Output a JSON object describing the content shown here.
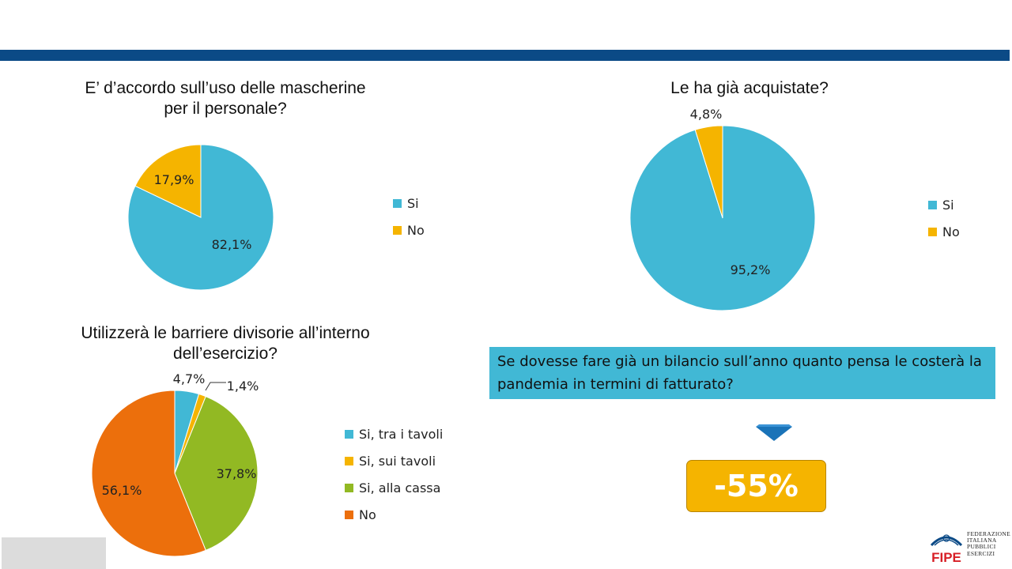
{
  "chart_data": [
    {
      "type": "pie",
      "title": "E’ d’accordo sull’uso delle mascherine per il personale?",
      "title_lines": [
        "E’ d’accordo sull’uso delle mascherine",
        "per il personale?"
      ],
      "categories": [
        "Si",
        "No"
      ],
      "values": [
        82.1,
        17.9
      ],
      "labels": [
        "82,1%",
        "17,9%"
      ],
      "colors": [
        "#41b8d5",
        "#f5b400"
      ],
      "legend": "right"
    },
    {
      "type": "pie",
      "title": "Le ha già acquistate?",
      "title_lines": [
        "Le ha già acquistate?"
      ],
      "categories": [
        "Si",
        "No"
      ],
      "values": [
        95.2,
        4.8
      ],
      "labels": [
        "95,2%",
        "4,8%"
      ],
      "colors": [
        "#41b8d5",
        "#f5b400"
      ],
      "legend": "right"
    },
    {
      "type": "pie",
      "title": "Utilizzerà le barriere divisorie all’interno dell’esercizio?",
      "title_lines": [
        "Utilizzerà le barriere divisorie all’interno",
        "dell’esercizio?"
      ],
      "categories": [
        "Si, tra i tavoli",
        "Si, sui tavoli",
        "Si, alla cassa",
        "No"
      ],
      "values": [
        4.7,
        1.4,
        37.8,
        56.1
      ],
      "labels": [
        "4,7%",
        "1,4%",
        "37,8%",
        "56,1%"
      ],
      "colors": [
        "#41b8d5",
        "#f5b400",
        "#92b923",
        "#ec6f0c"
      ],
      "legend": "right"
    }
  ],
  "question": {
    "text": "Se dovesse fare già un bilancio sull’anno quanto pensa le costerà la pandemia in termini di fatturato?"
  },
  "result": {
    "value": "-55%"
  },
  "logo": {
    "name": "FIPE",
    "text_lines": [
      "FEDERAZIONE",
      "ITALIANA",
      "PUBBLICI",
      "ESERCIZI"
    ]
  },
  "colors": {
    "header_bar": "#0b4a86",
    "accent_blue": "#41b8d5",
    "accent_yellow": "#f5b400",
    "accent_green": "#92b923",
    "accent_orange": "#ec6f0c"
  }
}
